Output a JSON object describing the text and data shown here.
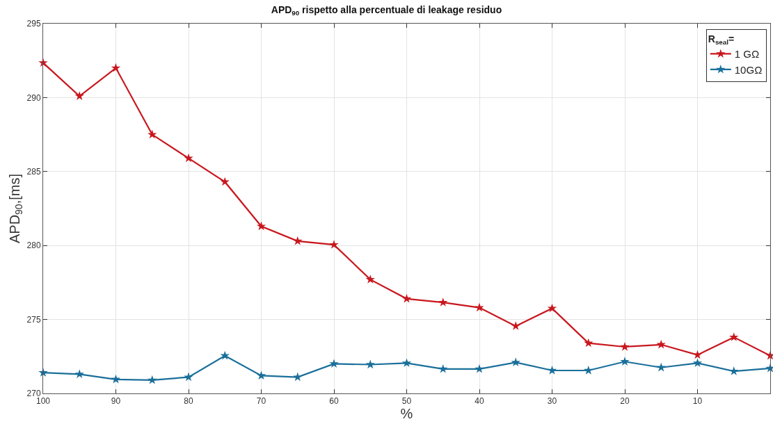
{
  "chart_data": {
    "type": "line",
    "title": "APD$_{90}$ rispetto alla percentuale di leakage residuo",
    "xlabel": "%",
    "ylabel": "APD$_{90}$,[ms]",
    "legend_title": "R$_{seal}$=",
    "x": [
      100,
      95,
      90,
      85,
      80,
      75,
      70,
      65,
      60,
      55,
      50,
      45,
      40,
      35,
      30,
      25,
      20,
      15,
      10,
      5,
      0
    ],
    "series": [
      {
        "name": "1 GΩ",
        "color": "#c8171e",
        "values": [
          292.35,
          290.1,
          292.0,
          287.5,
          285.9,
          284.3,
          281.3,
          280.3,
          280.05,
          277.7,
          276.4,
          276.15,
          275.8,
          274.55,
          275.75,
          273.4,
          273.15,
          273.3,
          272.6,
          273.8,
          272.55
        ]
      },
      {
        "name": "10GΩ",
        "color": "#1a6f9a",
        "values": [
          271.4,
          271.3,
          270.95,
          270.9,
          271.1,
          272.55,
          271.2,
          271.1,
          272.0,
          271.95,
          272.05,
          271.65,
          271.65,
          272.1,
          271.55,
          271.55,
          272.15,
          271.75,
          272.05,
          271.5,
          271.7
        ]
      }
    ],
    "xlim": [
      100,
      0
    ],
    "ylim": [
      270,
      295
    ],
    "xticks": [
      100,
      90,
      80,
      70,
      60,
      50,
      40,
      30,
      20,
      10
    ],
    "yticks": [
      270,
      275,
      280,
      285,
      290,
      295
    ],
    "grid": true,
    "legend": "top right",
    "marker": "star",
    "line_style": "solid"
  }
}
